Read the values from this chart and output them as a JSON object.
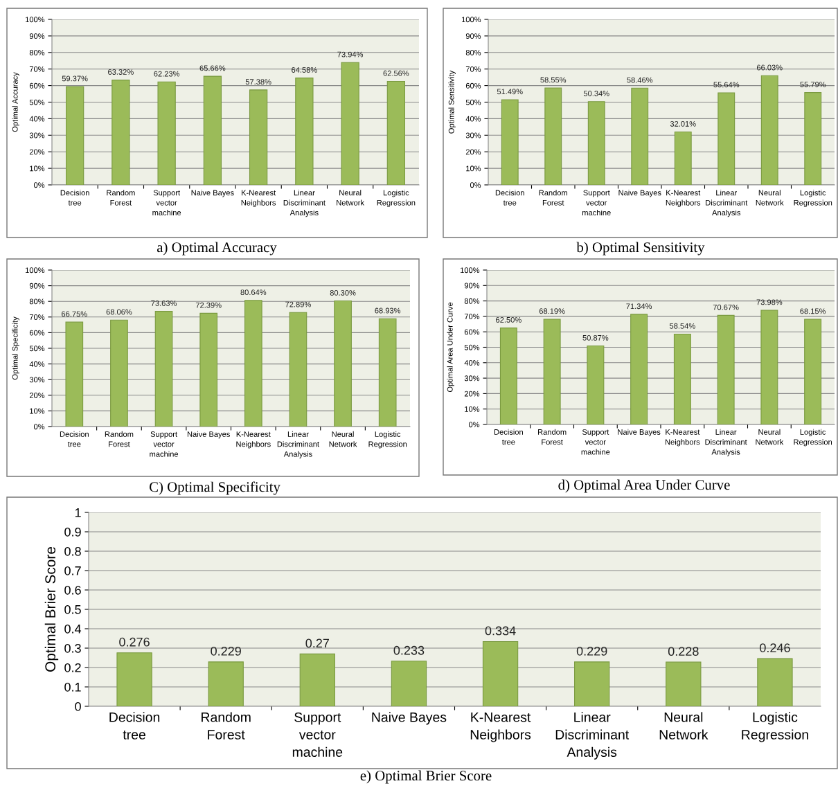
{
  "chart_data": [
    {
      "type": "bar",
      "title": "a) Optimal Accuracy",
      "ylabel": "Optimal Accuracy",
      "categories": [
        "Decision tree",
        "Random Forest",
        "Support vector machine",
        "Naive Bayes",
        "K-Nearest Neighbors",
        "Linear Discriminant Analysis",
        "Neural Network",
        "Logistic Regression"
      ],
      "values": [
        59.37,
        63.32,
        62.23,
        65.66,
        57.38,
        64.58,
        73.94,
        62.56
      ],
      "value_labels": [
        "59.37%",
        "63.32%",
        "62.23%",
        "65.66%",
        "57.38%",
        "64.58%",
        "73.94%",
        "62.56%"
      ],
      "color": "#9bbb59",
      "ylim": [
        0,
        100
      ],
      "yticks": [
        {
          "value": 0,
          "label": "0%"
        },
        {
          "value": 10,
          "label": "10%"
        },
        {
          "value": 20,
          "label": "20%"
        },
        {
          "value": 30,
          "label": "30%"
        },
        {
          "value": 40,
          "label": "40%"
        },
        {
          "value": 50,
          "label": "50%"
        },
        {
          "value": 60,
          "label": "60%"
        },
        {
          "value": 70,
          "label": "70%"
        },
        {
          "value": 80,
          "label": "80%"
        },
        {
          "value": 90,
          "label": "90%"
        },
        {
          "value": 100,
          "label": "100%"
        }
      ],
      "grid": "y",
      "legend": false
    },
    {
      "type": "bar",
      "title": "b) Optimal Sensitivity",
      "ylabel": "Optimal Sensitivity",
      "categories": [
        "Decision tree",
        "Random Forest",
        "Support vector machine",
        "Naive Bayes",
        "K-Nearest Neighbors",
        "Linear Discriminant Analysis",
        "Neural Network",
        "Logistic Regression"
      ],
      "values": [
        51.49,
        58.55,
        50.34,
        58.46,
        32.01,
        55.64,
        66.03,
        55.79
      ],
      "value_labels": [
        "51.49%",
        "58.55%",
        "50.34%",
        "58.46%",
        "32.01%",
        "55.64%",
        "66.03%",
        "55.79%"
      ],
      "color": "#9bbb59",
      "ylim": [
        0,
        100
      ],
      "yticks": [
        {
          "value": 0,
          "label": "0%"
        },
        {
          "value": 10,
          "label": "10%"
        },
        {
          "value": 20,
          "label": "20%"
        },
        {
          "value": 30,
          "label": "30%"
        },
        {
          "value": 40,
          "label": "40%"
        },
        {
          "value": 50,
          "label": "50%"
        },
        {
          "value": 60,
          "label": "60%"
        },
        {
          "value": 70,
          "label": "70%"
        },
        {
          "value": 80,
          "label": "80%"
        },
        {
          "value": 90,
          "label": "90%"
        },
        {
          "value": 100,
          "label": "100%"
        }
      ],
      "grid": "y",
      "legend": false
    },
    {
      "type": "bar",
      "title": "C) Optimal Specificity",
      "ylabel": "Optimal Specificity",
      "categories": [
        "Decision tree",
        "Random Forest",
        "Support vector machine",
        "Naive Bayes",
        "K-Nearest Neighbors",
        "Linear Discriminant Analysis",
        "Neural Network",
        "Logistic Regression"
      ],
      "values": [
        66.75,
        68.06,
        73.63,
        72.39,
        80.64,
        72.89,
        80.3,
        68.93
      ],
      "value_labels": [
        "66.75%",
        "68.06%",
        "73.63%",
        "72.39%",
        "80.64%",
        "72.89%",
        "80.30%",
        "68.93%"
      ],
      "color": "#9bbb59",
      "ylim": [
        0,
        100
      ],
      "yticks": [
        {
          "value": 0,
          "label": "0%"
        },
        {
          "value": 10,
          "label": "10%"
        },
        {
          "value": 20,
          "label": "20%"
        },
        {
          "value": 30,
          "label": "30%"
        },
        {
          "value": 40,
          "label": "40%"
        },
        {
          "value": 50,
          "label": "50%"
        },
        {
          "value": 60,
          "label": "60%"
        },
        {
          "value": 70,
          "label": "70%"
        },
        {
          "value": 80,
          "label": "80%"
        },
        {
          "value": 90,
          "label": "90%"
        },
        {
          "value": 100,
          "label": "100%"
        }
      ],
      "grid": "y",
      "legend": false
    },
    {
      "type": "bar",
      "title": "d) Optimal Area Under Curve",
      "ylabel": "Optimal Area Under Curve",
      "categories": [
        "Decision tree",
        "Random Forest",
        "Support vector machine",
        "Naive Bayes",
        "K-Nearest Neighbors",
        "Linear Discriminant Analysis",
        "Neural Network",
        "Logistic Regression"
      ],
      "values": [
        62.5,
        68.19,
        50.87,
        71.34,
        58.54,
        70.67,
        73.98,
        68.15
      ],
      "value_labels": [
        "62.50%",
        "68.19%",
        "50.87%",
        "71.34%",
        "58.54%",
        "70.67%",
        "73.98%",
        "68.15%"
      ],
      "color": "#9bbb59",
      "ylim": [
        0,
        100
      ],
      "yticks": [
        {
          "value": 0,
          "label": "0%"
        },
        {
          "value": 10,
          "label": "10%"
        },
        {
          "value": 20,
          "label": "20%"
        },
        {
          "value": 30,
          "label": "30%"
        },
        {
          "value": 40,
          "label": "40%"
        },
        {
          "value": 50,
          "label": "50%"
        },
        {
          "value": 60,
          "label": "60%"
        },
        {
          "value": 70,
          "label": "70%"
        },
        {
          "value": 80,
          "label": "80%"
        },
        {
          "value": 90,
          "label": "90%"
        },
        {
          "value": 100,
          "label": "100%"
        }
      ],
      "grid": "y",
      "legend": false
    },
    {
      "type": "bar",
      "title": "e) Optimal Brier Score",
      "ylabel": "Optimal Brier Score",
      "categories": [
        "Decision tree",
        "Random Forest",
        "Support vector machine",
        "Naive Bayes",
        "K-Nearest Neighbors",
        "Linear Discriminant Analysis",
        "Neural Network",
        "Logistic Regression"
      ],
      "values": [
        0.276,
        0.229,
        0.27,
        0.233,
        0.334,
        0.229,
        0.228,
        0.246
      ],
      "data_labels": true,
      "color": "#9bbb59",
      "ylim": [
        0,
        1
      ],
      "yticks": [
        0,
        0.1,
        0.2,
        0.3,
        0.4,
        0.5,
        0.6,
        0.7,
        0.8,
        0.9,
        1
      ],
      "grid": "y",
      "legend": false
    }
  ]
}
